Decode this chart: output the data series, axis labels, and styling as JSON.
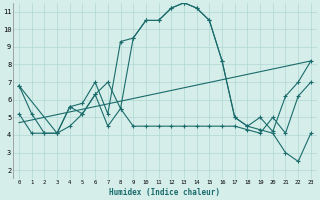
{
  "xlabel": "Humidex (Indice chaleur)",
  "bg_color": "#d5eeea",
  "grid_color": "#b0d8d4",
  "line_color": "#1a6b6b",
  "xlim": [
    -0.5,
    23.5
  ],
  "ylim": [
    1.5,
    11.5
  ],
  "yticks": [
    2,
    3,
    4,
    5,
    6,
    7,
    8,
    9,
    10,
    11
  ],
  "xticks": [
    0,
    1,
    2,
    3,
    4,
    5,
    6,
    7,
    8,
    9,
    10,
    11,
    12,
    13,
    14,
    15,
    16,
    17,
    18,
    19,
    20,
    21,
    22,
    23
  ],
  "curve1_x": [
    0,
    1,
    2,
    3,
    4,
    5,
    6,
    7,
    8,
    9,
    10,
    11,
    12,
    13,
    14,
    15,
    16,
    17,
    18,
    19,
    20,
    21,
    22,
    23
  ],
  "curve1_y": [
    6.8,
    5.2,
    4.1,
    4.1,
    5.6,
    5.8,
    7.0,
    5.2,
    9.3,
    9.5,
    10.5,
    10.5,
    11.2,
    11.5,
    11.2,
    10.5,
    8.2,
    5.0,
    4.5,
    4.3,
    4.1,
    3.0,
    2.5,
    4.1
  ],
  "curve2_x": [
    0,
    1,
    2,
    3,
    4,
    5,
    6,
    7,
    8,
    9,
    10,
    11,
    12,
    13,
    14,
    15,
    16,
    17,
    18,
    19,
    20,
    21,
    22,
    23
  ],
  "curve2_y": [
    5.2,
    4.1,
    4.1,
    4.1,
    4.5,
    5.2,
    6.3,
    4.5,
    5.5,
    4.5,
    4.5,
    4.5,
    4.5,
    4.5,
    4.5,
    4.5,
    4.5,
    4.5,
    4.3,
    4.1,
    5.0,
    4.1,
    6.2,
    7.0
  ],
  "curve3_x": [
    0,
    23
  ],
  "curve3_y": [
    4.7,
    8.2
  ],
  "curve4_x": [
    0,
    3,
    4,
    5,
    6,
    7,
    8,
    9,
    10,
    11,
    12,
    13,
    14,
    15,
    16,
    17,
    18,
    19,
    20,
    21,
    22,
    23
  ],
  "curve4_y": [
    6.8,
    4.1,
    5.6,
    5.2,
    6.3,
    7.0,
    5.5,
    9.5,
    10.5,
    10.5,
    11.2,
    11.5,
    11.2,
    10.5,
    8.2,
    5.0,
    4.5,
    5.0,
    4.2,
    6.2,
    7.0,
    8.2
  ]
}
